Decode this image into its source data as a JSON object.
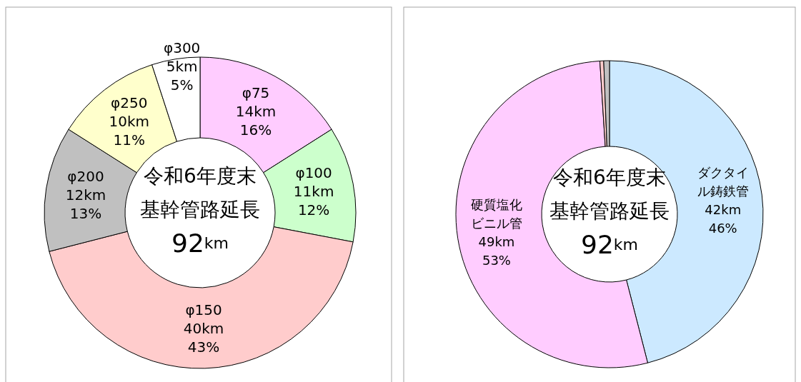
{
  "chart_data": [
    {
      "type": "donut",
      "categories": [
        "φ75",
        "φ100",
        "φ150",
        "φ200",
        "φ250",
        "φ300"
      ],
      "values": [
        16,
        12,
        43,
        13,
        11,
        5
      ],
      "value_labels": [
        "14km\n16%",
        "11km\n12%",
        "40km\n43%",
        "12km\n13%",
        "10km\n11%",
        "5km\n5%"
      ],
      "colors": [
        "#ffccff",
        "#ccffcc",
        "#ffcccc",
        "#c0c0c0",
        "#ffffcc",
        "#ffffff"
      ],
      "annotations": [
        "令和6年度末",
        "基幹管路延長",
        "92km"
      ],
      "legend": false
    },
    {
      "type": "donut",
      "categories": [
        "ダクタイル鋳鉄管",
        "硬質塩化ビニル管",
        null,
        null
      ],
      "values": [
        46,
        53,
        0.4,
        0.6
      ],
      "value_labels": [
        "42km\n46%",
        "49km\n53%",
        null,
        null
      ],
      "colors": [
        "#cce9ff",
        "#ffccff",
        "#ffcccc",
        "#c0c0c0"
      ],
      "annotations": [
        "令和6年度末",
        "基幹管路延長",
        "92km"
      ],
      "legend": false
    }
  ]
}
